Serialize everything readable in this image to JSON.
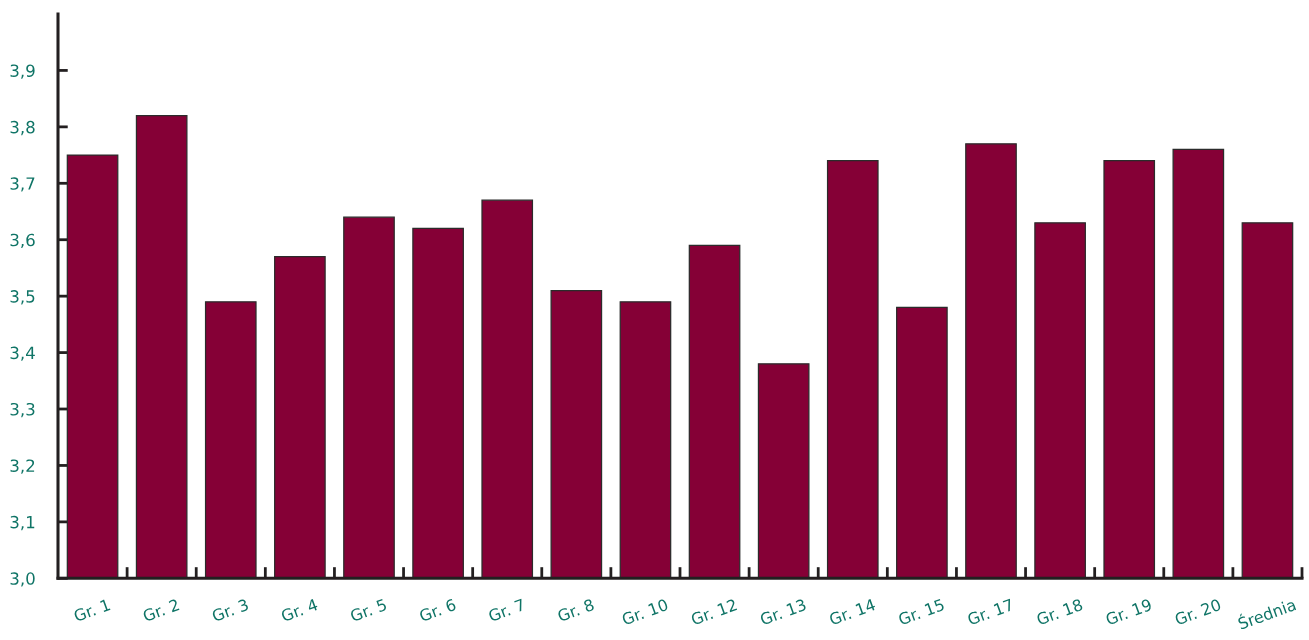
{
  "chart_data": {
    "type": "bar",
    "categories": [
      "Gr. 1",
      "Gr. 2",
      "Gr. 3",
      "Gr. 4",
      "Gr. 5",
      "Gr. 6",
      "Gr. 7",
      "Gr. 8",
      "Gr. 10",
      "Gr. 12",
      "Gr. 13",
      "Gr. 14",
      "Gr. 15",
      "Gr. 17",
      "Gr. 18",
      "Gr. 19",
      "Gr. 20",
      "Średnia"
    ],
    "values": [
      3.75,
      3.82,
      3.49,
      3.57,
      3.64,
      3.62,
      3.67,
      3.51,
      3.49,
      3.59,
      3.38,
      3.74,
      3.48,
      3.77,
      3.63,
      3.74,
      3.76,
      3.63
    ],
    "color": "#850036",
    "ylim": [
      3.0,
      4.0
    ],
    "yticks": [
      {
        "value": 3.0,
        "label": "3,0"
      },
      {
        "value": 3.1,
        "label": "3,1"
      },
      {
        "value": 3.2,
        "label": "3,2"
      },
      {
        "value": 3.3,
        "label": "3,3"
      },
      {
        "value": 3.4,
        "label": "3,4"
      },
      {
        "value": 3.5,
        "label": "3,5"
      },
      {
        "value": 3.6,
        "label": "3,6"
      },
      {
        "value": 3.7,
        "label": "3,7"
      },
      {
        "value": 3.8,
        "label": "3,8"
      },
      {
        "value": 3.9,
        "label": "3,9"
      }
    ]
  }
}
